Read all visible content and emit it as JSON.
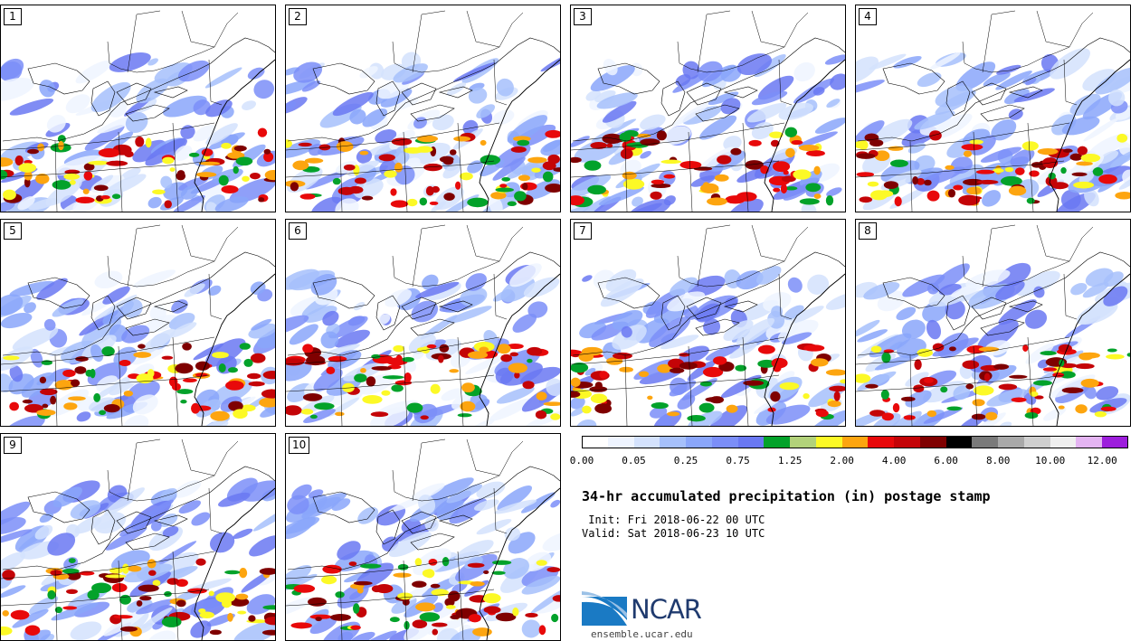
{
  "panels": [
    {
      "label": "1",
      "seed": 11
    },
    {
      "label": "2",
      "seed": 23
    },
    {
      "label": "3",
      "seed": 37
    },
    {
      "label": "4",
      "seed": 41
    },
    {
      "label": "5",
      "seed": 53
    },
    {
      "label": "6",
      "seed": 67
    },
    {
      "label": "7",
      "seed": 71
    },
    {
      "label": "8",
      "seed": 83
    },
    {
      "label": "9",
      "seed": 97
    },
    {
      "label": "10",
      "seed": 101
    }
  ],
  "colorbar": {
    "colors": [
      "#ffffff",
      "#eef4ff",
      "#d4e2fd",
      "#a6c0fb",
      "#8aa6fa",
      "#7b8ef8",
      "#6a78f2",
      "#03a22a",
      "#b2d27a",
      "#fcf926",
      "#fda50f",
      "#e8090a",
      "#c40407",
      "#7f0000",
      "#000000",
      "#7a7a7a",
      "#a9a9a9",
      "#cfcfcf",
      "#efefef",
      "#e4b4f2",
      "#9d1edc"
    ],
    "tick_labels": [
      "0.00",
      "0.05",
      "0.25",
      "0.75",
      "1.25",
      "2.00",
      "4.00",
      "6.00",
      "8.00",
      "10.00",
      "12.00"
    ]
  },
  "title": "34-hr accumulated precipitation (in) postage stamp",
  "init": " Init: Fri 2018-06-22 00 UTC",
  "valid": "Valid: Sat 2018-06-23 10 UTC",
  "logo": {
    "text": "NCAR",
    "url": "ensemble.ucar.edu",
    "color": "#1f3a6e",
    "swoosh_color": "#1a7ac4"
  }
}
